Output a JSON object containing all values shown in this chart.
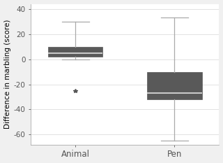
{
  "categories": [
    "Animal",
    "Pen"
  ],
  "box_data": {
    "Animal": {
      "whislo": 0,
      "q1": 2,
      "med": 5,
      "q3": 10,
      "whishi": 30,
      "fliers": [
        -25
      ]
    },
    "Pen": {
      "whislo": -65,
      "q1": -32,
      "med": -27,
      "q3": -10,
      "whishi": 33,
      "fliers": []
    }
  },
  "ylabel": "Difference in marbling (score)",
  "ylim": [
    -68,
    44
  ],
  "yticks": [
    -60,
    -40,
    -20,
    0,
    20,
    40
  ],
  "box_color": "#595959",
  "median_color": "#c8c8c8",
  "whisker_color": "#aaaaaa",
  "cap_color": "#aaaaaa",
  "flier_color": "#555555",
  "background_color": "#f0f0f0",
  "plot_bg_color": "#ffffff",
  "grid_color": "#dddddd",
  "figsize": [
    3.2,
    2.33
  ],
  "dpi": 100
}
